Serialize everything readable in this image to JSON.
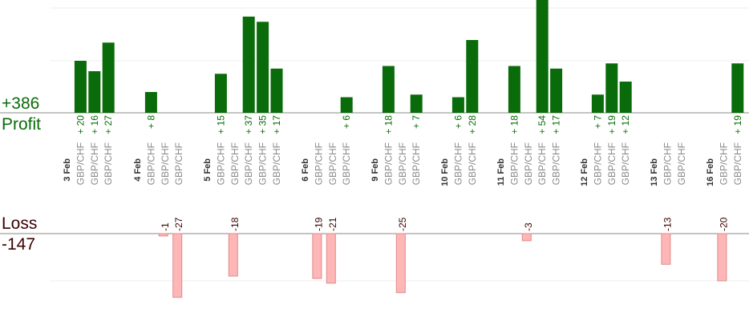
{
  "summary": {
    "profit_total": "+386",
    "profit_label": "Profit",
    "loss_label": "Loss",
    "loss_total": "-147"
  },
  "colors": {
    "profit_bar": "#0a6b0a",
    "profit_text": "#0a6b0a",
    "loss_fill": "#ffb6b6",
    "loss_stroke": "#e08a8a",
    "loss_text": "#3a0000",
    "instrument_text": "#8a8a8a",
    "date_text": "#333333"
  },
  "chart_data": {
    "type": "bar",
    "instrument": "GBP/CHF",
    "days": [
      {
        "date": "3 Feb",
        "trades": [
          {
            "value": 20
          },
          {
            "value": 16
          },
          {
            "value": 27
          }
        ]
      },
      {
        "date": "4 Feb",
        "trades": [
          {
            "value": 8
          },
          {
            "value": -1
          },
          {
            "value": -27
          }
        ]
      },
      {
        "date": "5 Feb",
        "trades": [
          {
            "value": 15
          },
          {
            "value": -18
          },
          {
            "value": 37
          },
          {
            "value": 35
          },
          {
            "value": 17
          }
        ]
      },
      {
        "date": "6 Feb",
        "trades": [
          {
            "value": -19
          },
          {
            "value": -21
          },
          {
            "value": 6
          }
        ]
      },
      {
        "date": "9 Feb",
        "trades": [
          {
            "value": 18
          },
          {
            "value": -25
          },
          {
            "value": 7
          }
        ]
      },
      {
        "date": "10 Feb",
        "trades": [
          {
            "value": 6
          },
          {
            "value": 28
          }
        ]
      },
      {
        "date": "11 Feb",
        "trades": [
          {
            "value": 18
          },
          {
            "value": -3
          },
          {
            "value": 54
          },
          {
            "value": 17
          }
        ]
      },
      {
        "date": "12 Feb",
        "trades": [
          {
            "value": 7
          },
          {
            "value": 19
          },
          {
            "value": 12
          }
        ]
      },
      {
        "date": "13 Feb",
        "trades": [
          {
            "value": -13
          },
          {
            "value": null
          }
        ]
      },
      {
        "date": "16 Feb",
        "trades": [
          {
            "value": -20
          },
          {
            "value": 19
          }
        ]
      }
    ],
    "profit_axis_ylim": [
      0,
      20
    ],
    "loss_axis_ylim": [
      -20,
      0
    ],
    "grid": true
  }
}
